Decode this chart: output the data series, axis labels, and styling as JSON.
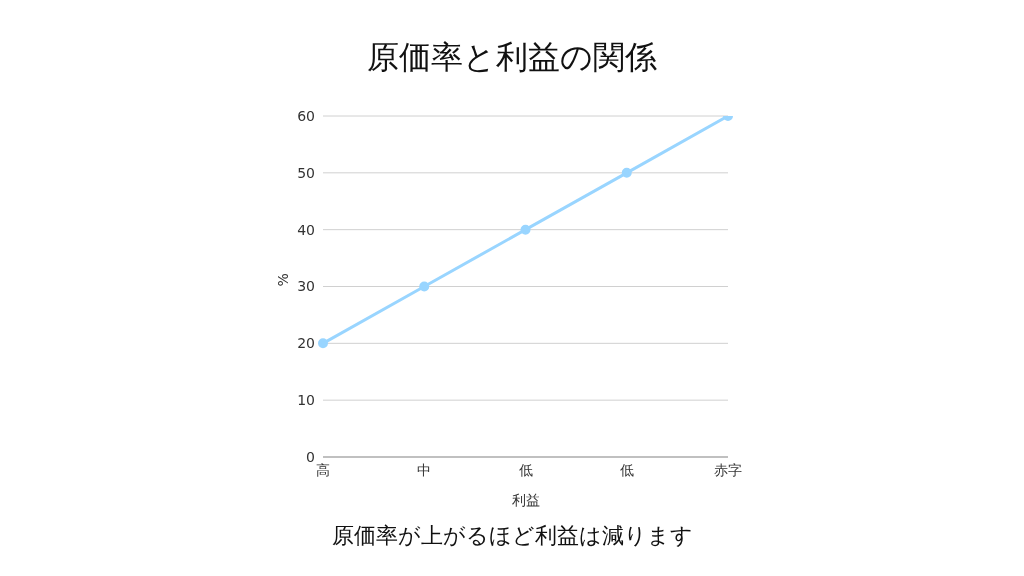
{
  "chart_data": {
    "type": "line",
    "title": "原価率と利益の関係",
    "xlabel": "利益",
    "ylabel": "%",
    "categories": [
      "高",
      "中",
      "低",
      "低",
      "赤字"
    ],
    "series": [
      {
        "color": "#99d5ff",
        "values": [
          20,
          30,
          40,
          50,
          60
        ]
      }
    ],
    "ylim": [
      0,
      60
    ],
    "yticks": [
      0,
      10,
      20,
      30,
      40,
      50,
      60
    ],
    "grid": "y",
    "legend": false,
    "marker": "circle",
    "line_style": "solid",
    "annotations": [
      "原価率が上がるほど利益は減ります"
    ]
  }
}
